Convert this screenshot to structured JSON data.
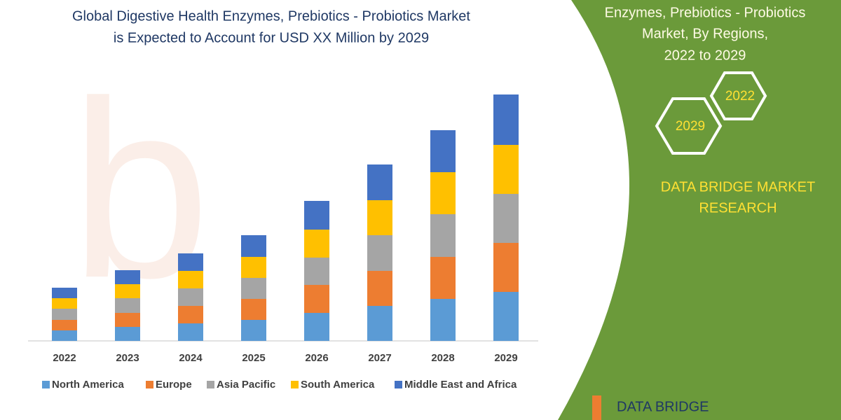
{
  "chart_data": {
    "type": "stacked-bar",
    "title": [
      "Global Digestive Health Enzymes, Prebiotics - Probiotics Market",
      "is Expected to Account for USD XX Million by 2029"
    ],
    "categories": [
      "2022",
      "2023",
      "2024",
      "2025",
      "2026",
      "2027",
      "2028",
      "2029"
    ],
    "series": [
      {
        "name": "North America",
        "color": "#5b9bd5",
        "values": [
          15,
          20,
          25,
          30,
          40,
          50,
          60,
          70
        ]
      },
      {
        "name": "Europe",
        "color": "#ed7d31",
        "values": [
          15,
          20,
          25,
          30,
          40,
          50,
          60,
          70
        ]
      },
      {
        "name": "Asia Pacific",
        "color": "#a5a5a5",
        "values": [
          16,
          21,
          25,
          30,
          39,
          51,
          61,
          70
        ]
      },
      {
        "name": "South America",
        "color": "#ffc000",
        "values": [
          15,
          20,
          25,
          30,
          40,
          50,
          60,
          70
        ]
      },
      {
        "name": "Middle East and Africa",
        "color": "#4472c4",
        "values": [
          15,
          20,
          25,
          31,
          41,
          51,
          60,
          72
        ]
      }
    ],
    "legend": "bottom"
  },
  "side_panel": {
    "heading": [
      "Enzymes, Prebiotics - Probiotics",
      "Market, By Regions,",
      "2022 to 2029"
    ],
    "hexagons": [
      "2022",
      "2029"
    ],
    "brand": [
      "DATA BRIDGE MARKET",
      "RESEARCH"
    ],
    "logo": "DATA BRIDGE"
  }
}
